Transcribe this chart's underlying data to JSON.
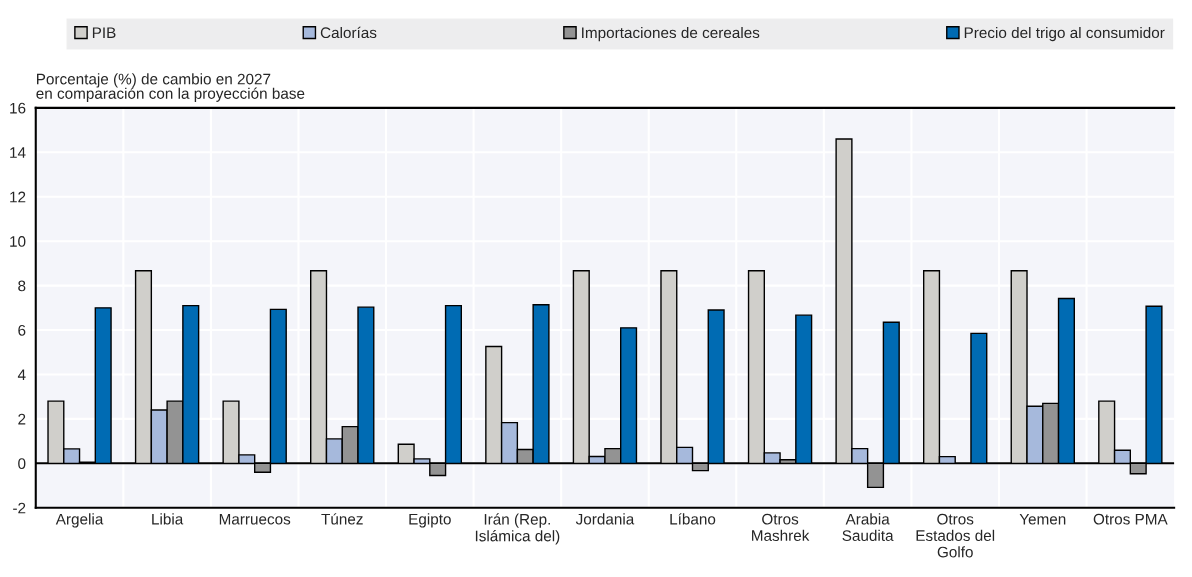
{
  "chart_data": {
    "type": "bar",
    "ylabel": "Porcentaje (%) de cambio en 2027\nen comparación con la proyección base",
    "categories": [
      "Argelia",
      "Libia",
      "Marruecos",
      "Túnez",
      "Egipto",
      "Irán (Rep.\nIslámica del)",
      "Jordania",
      "Líbano",
      "Otros\nMashrek",
      "Arabia\nSaudita",
      "Otros\nEstados del\nGolfo",
      "Yemen",
      "Otros PMA"
    ],
    "series": [
      {
        "name": "PIB",
        "color": "#d0cfcb",
        "values": [
          2.8,
          8.67,
          2.8,
          8.67,
          0.86,
          5.26,
          8.67,
          8.67,
          8.67,
          14.6,
          8.67,
          8.67,
          2.8
        ]
      },
      {
        "name": "Calorías",
        "color": "#a6b9dc",
        "values": [
          0.65,
          2.4,
          0.38,
          1.1,
          0.2,
          1.83,
          0.31,
          0.72,
          0.47,
          0.66,
          0.3,
          2.57,
          0.59
        ]
      },
      {
        "name": "Importaciones de cereales",
        "color": "#939393",
        "values": [
          0.05,
          2.8,
          -0.4,
          1.65,
          -0.55,
          0.62,
          0.66,
          -0.33,
          0.16,
          -1.08,
          null,
          2.7,
          -0.47
        ]
      },
      {
        "name": "Precio del trigo al consumidor",
        "color": "#006bb3",
        "values": [
          7.0,
          7.1,
          6.93,
          7.03,
          7.1,
          7.14,
          6.1,
          6.9,
          6.67,
          6.35,
          5.85,
          7.42,
          7.07
        ]
      }
    ],
    "ylim": [
      -2,
      16
    ],
    "yticks": [
      -2,
      0,
      2,
      4,
      6,
      8,
      10,
      12,
      14,
      16
    ],
    "grid": true,
    "legend": "top"
  }
}
